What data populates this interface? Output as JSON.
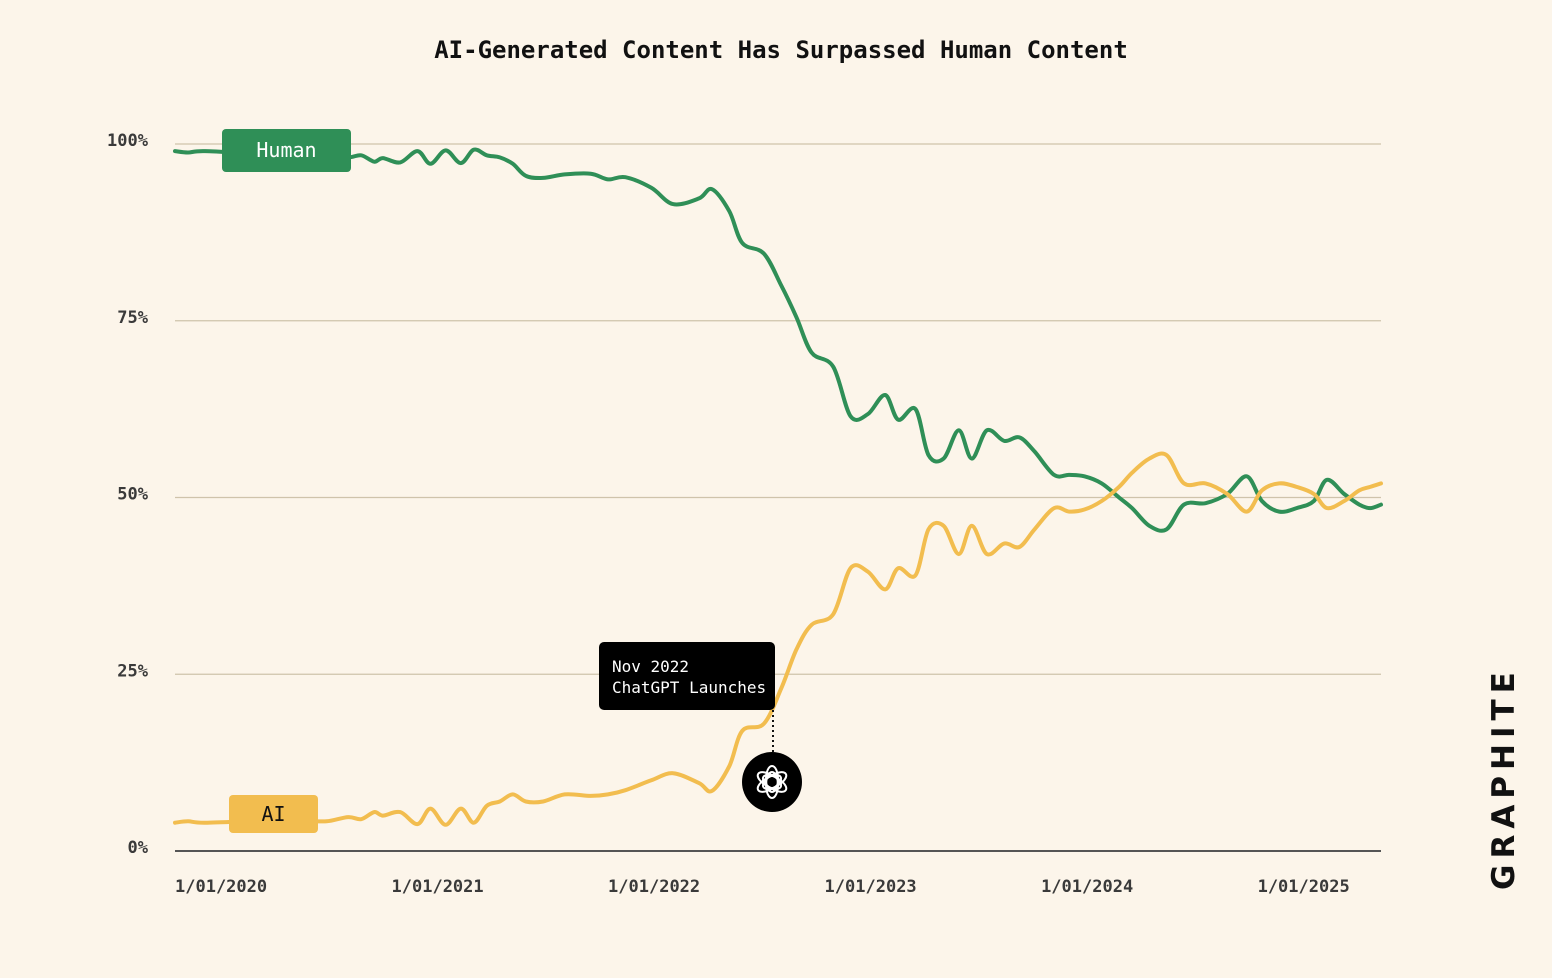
{
  "chart_data": {
    "type": "line",
    "title": "AI-Generated Content Has Surpassed Human Content",
    "xlabel": "",
    "ylabel": "",
    "ylim": [
      0,
      100
    ],
    "xlim": [
      "2020-01-01",
      "2025-06-30"
    ],
    "y_ticks": [
      "0%",
      "25%",
      "50%",
      "75%",
      "100%"
    ],
    "y_tick_values": [
      0,
      25,
      50,
      75,
      100
    ],
    "x_ticks": [
      "1/01/2020",
      "1/01/2021",
      "1/01/2022",
      "1/01/2023",
      "1/01/2024",
      "1/01/2025"
    ],
    "x_tick_values": [
      2020.0,
      2021.0,
      2022.0,
      2023.0,
      2024.0,
      2025.0
    ],
    "grid": true,
    "series": [
      {
        "name": "Human",
        "color": "#2f8f57",
        "x": [
          2020.0,
          2020.06,
          2020.14,
          2020.42,
          2020.5,
          2020.55,
          2020.6,
          2020.7,
          2020.8,
          2020.86,
          2020.92,
          2020.96,
          2021.04,
          2021.12,
          2021.18,
          2021.25,
          2021.32,
          2021.38,
          2021.44,
          2021.5,
          2021.56,
          2021.62,
          2021.7,
          2021.8,
          2021.92,
          2022.0,
          2022.08,
          2022.2,
          2022.3,
          2022.42,
          2022.48,
          2022.56,
          2022.62,
          2022.72,
          2022.8,
          2022.87,
          2022.94,
          2023.04,
          2023.12,
          2023.2,
          2023.28,
          2023.34,
          2023.42,
          2023.48,
          2023.55,
          2023.62,
          2023.68,
          2023.75,
          2023.83,
          2023.9,
          2023.97,
          2024.06,
          2024.13,
          2024.2,
          2024.28,
          2024.36,
          2024.42,
          2024.5,
          2024.58,
          2024.66,
          2024.76,
          2024.86,
          2024.95,
          2025.02,
          2025.1,
          2025.18,
          2025.26,
          2025.32,
          2025.4,
          2025.47,
          2025.52,
          2025.57
        ],
        "values": [
          99.0,
          98.8,
          99.0,
          98.6,
          98.8,
          99.2,
          98.5,
          98.4,
          98.1,
          98.4,
          97.5,
          98.0,
          97.4,
          99.0,
          97.2,
          99.1,
          97.3,
          99.2,
          98.4,
          98.1,
          97.2,
          95.5,
          95.2,
          95.7,
          95.8,
          95.0,
          95.3,
          93.8,
          91.5,
          92.3,
          93.6,
          90.5,
          86.0,
          84.5,
          80.0,
          75.5,
          70.5,
          68.5,
          61.5,
          61.8,
          64.5,
          61.0,
          62.5,
          56.0,
          55.5,
          59.5,
          55.5,
          59.5,
          58.0,
          58.5,
          56.5,
          53.2,
          53.2,
          53.0,
          52.0,
          50.0,
          48.5,
          46.0,
          45.5,
          49.0,
          49.2,
          50.5,
          53.0,
          49.5,
          48.0,
          48.5,
          49.5,
          52.5,
          50.5,
          49.0,
          48.5,
          49.0
        ],
        "stroke_width_note": "thick",
        "legend_label": "Human"
      },
      {
        "name": "AI",
        "color": "#f2bd4f",
        "x": [
          2020.0,
          2020.06,
          2020.14,
          2020.42,
          2020.5,
          2020.55,
          2020.6,
          2020.7,
          2020.8,
          2020.86,
          2020.92,
          2020.96,
          2021.04,
          2021.12,
          2021.18,
          2021.25,
          2021.32,
          2021.38,
          2021.44,
          2021.5,
          2021.56,
          2021.62,
          2021.7,
          2021.8,
          2021.92,
          2022.0,
          2022.08,
          2022.2,
          2022.3,
          2022.42,
          2022.48,
          2022.56,
          2022.62,
          2022.72,
          2022.8,
          2022.87,
          2022.94,
          2023.04,
          2023.12,
          2023.2,
          2023.28,
          2023.34,
          2023.42,
          2023.48,
          2023.55,
          2023.62,
          2023.68,
          2023.75,
          2023.83,
          2023.9,
          2023.97,
          2024.06,
          2024.13,
          2024.2,
          2024.28,
          2024.36,
          2024.42,
          2024.5,
          2024.58,
          2024.66,
          2024.76,
          2024.86,
          2024.95,
          2025.02,
          2025.1,
          2025.18,
          2025.26,
          2025.32,
          2025.4,
          2025.47,
          2025.52,
          2025.57
        ],
        "values": [
          4.0,
          4.2,
          4.0,
          4.3,
          4.2,
          4.0,
          4.3,
          4.2,
          4.8,
          4.5,
          5.5,
          5.0,
          5.5,
          3.8,
          6.0,
          3.7,
          6.0,
          4.0,
          6.4,
          7.0,
          8.0,
          7.0,
          7.0,
          8.0,
          7.8,
          8.0,
          8.6,
          10.0,
          11.0,
          9.6,
          8.5,
          12.0,
          17.0,
          18.0,
          23.0,
          28.5,
          32.0,
          33.5,
          40.0,
          39.5,
          37.0,
          40.0,
          39.0,
          45.5,
          46.0,
          42.0,
          46.0,
          42.0,
          43.5,
          43.0,
          45.5,
          48.5,
          48.0,
          48.3,
          49.5,
          51.5,
          53.5,
          55.5,
          56.0,
          52.0,
          52.0,
          50.5,
          48.0,
          51.0,
          52.0,
          51.5,
          50.5,
          48.5,
          49.5,
          51.0,
          51.5,
          52.0
        ],
        "legend_label": "AI"
      }
    ],
    "annotations": [
      {
        "x": 2022.75,
        "y": 8.5,
        "line1": "Nov 2022",
        "line2": "ChatGPT Launches",
        "marker": "openai-logo-icon"
      }
    ]
  },
  "colors": {
    "background": "#fcf5ea",
    "grid": "#cfc3ab",
    "axis": "#555555",
    "human": "#2f8f57",
    "ai": "#f2bd4f",
    "annotation_bg": "#000000"
  },
  "brand": {
    "logo_text": "GRAPHITE"
  }
}
